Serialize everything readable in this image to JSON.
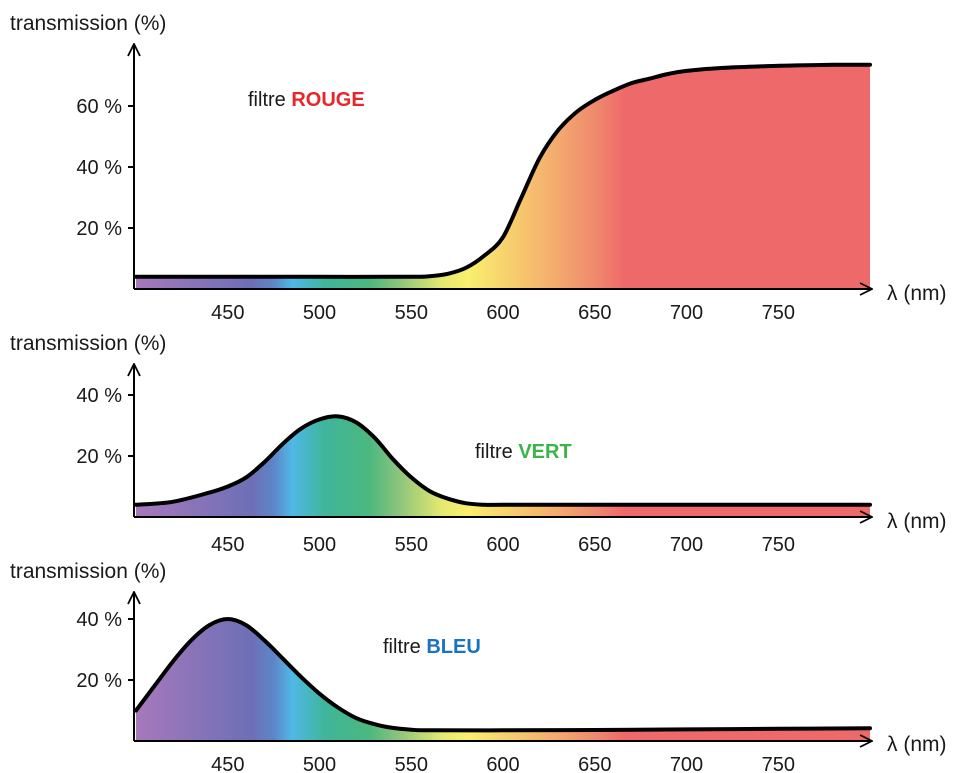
{
  "chart_data": [
    {
      "type": "area",
      "ylabel": "transmission (%)",
      "xlabel": "λ (nm)",
      "annotation": {
        "prefix": "filtre ",
        "name": "ROUGE",
        "color": "#e8262d"
      },
      "xlim": [
        400,
        800
      ],
      "ylim": [
        0,
        75
      ],
      "x_ticks": [
        "450",
        "500",
        "550",
        "600",
        "650",
        "700",
        "750"
      ],
      "y_ticks": [
        "20 %",
        "40 %",
        "60 %"
      ],
      "y_tick_values": [
        20,
        40,
        60
      ],
      "x_tick_values": [
        450,
        500,
        550,
        600,
        650,
        700,
        750
      ],
      "series": [
        {
          "x": [
            400,
            450,
            500,
            550,
            560,
            570,
            580,
            590,
            600,
            610,
            620,
            630,
            640,
            650,
            660,
            670,
            680,
            690,
            700,
            720,
            740,
            760,
            780,
            800
          ],
          "y": [
            4,
            4,
            4,
            4,
            4.2,
            5,
            7,
            11,
            17,
            30,
            43,
            52,
            58,
            62,
            65,
            67.5,
            69,
            70.5,
            71.5,
            72.5,
            73,
            73.3,
            73.5,
            73.5
          ]
        }
      ]
    },
    {
      "type": "area",
      "ylabel": "transmission (%)",
      "xlabel": "λ (nm)",
      "annotation": {
        "prefix": "filtre ",
        "name": "VERT",
        "color": "#3bb54a"
      },
      "xlim": [
        400,
        800
      ],
      "ylim": [
        0,
        48
      ],
      "x_ticks": [
        "450",
        "500",
        "550",
        "600",
        "650",
        "700",
        "750"
      ],
      "y_ticks": [
        "20 %",
        "40 %"
      ],
      "y_tick_values": [
        20,
        40
      ],
      "x_tick_values": [
        450,
        500,
        550,
        600,
        650,
        700,
        750
      ],
      "series": [
        {
          "x": [
            400,
            420,
            440,
            450,
            460,
            470,
            480,
            490,
            500,
            510,
            520,
            530,
            540,
            550,
            560,
            570,
            580,
            590,
            600,
            650,
            700,
            750,
            800
          ],
          "y": [
            4,
            5,
            8,
            10,
            13,
            18,
            24,
            29,
            32,
            33,
            31,
            26,
            19,
            13,
            8.5,
            6,
            4.5,
            4,
            4,
            4,
            4,
            4,
            4
          ]
        }
      ]
    },
    {
      "type": "area",
      "ylabel": "transmission (%)",
      "xlabel": "λ (nm)",
      "annotation": {
        "prefix": "filtre ",
        "name": "BLEU",
        "color": "#1a74bd"
      },
      "xlim": [
        400,
        800
      ],
      "ylim": [
        0,
        48
      ],
      "x_ticks": [
        "450",
        "500",
        "550",
        "600",
        "650",
        "700",
        "750"
      ],
      "y_ticks": [
        "20 %",
        "40 %"
      ],
      "y_tick_values": [
        20,
        40
      ],
      "x_tick_values": [
        450,
        500,
        550,
        600,
        650,
        700,
        750
      ],
      "series": [
        {
          "x": [
            400,
            410,
            420,
            430,
            440,
            450,
            460,
            470,
            480,
            490,
            500,
            510,
            520,
            530,
            540,
            550,
            560,
            600,
            650,
            700,
            750,
            800
          ],
          "y": [
            10,
            18,
            26,
            33,
            38,
            40,
            38,
            33,
            27,
            21,
            15.5,
            11,
            7.5,
            5.5,
            4.3,
            3.7,
            3.5,
            3.5,
            3.6,
            3.8,
            4,
            4.2
          ]
        }
      ]
    }
  ]
}
